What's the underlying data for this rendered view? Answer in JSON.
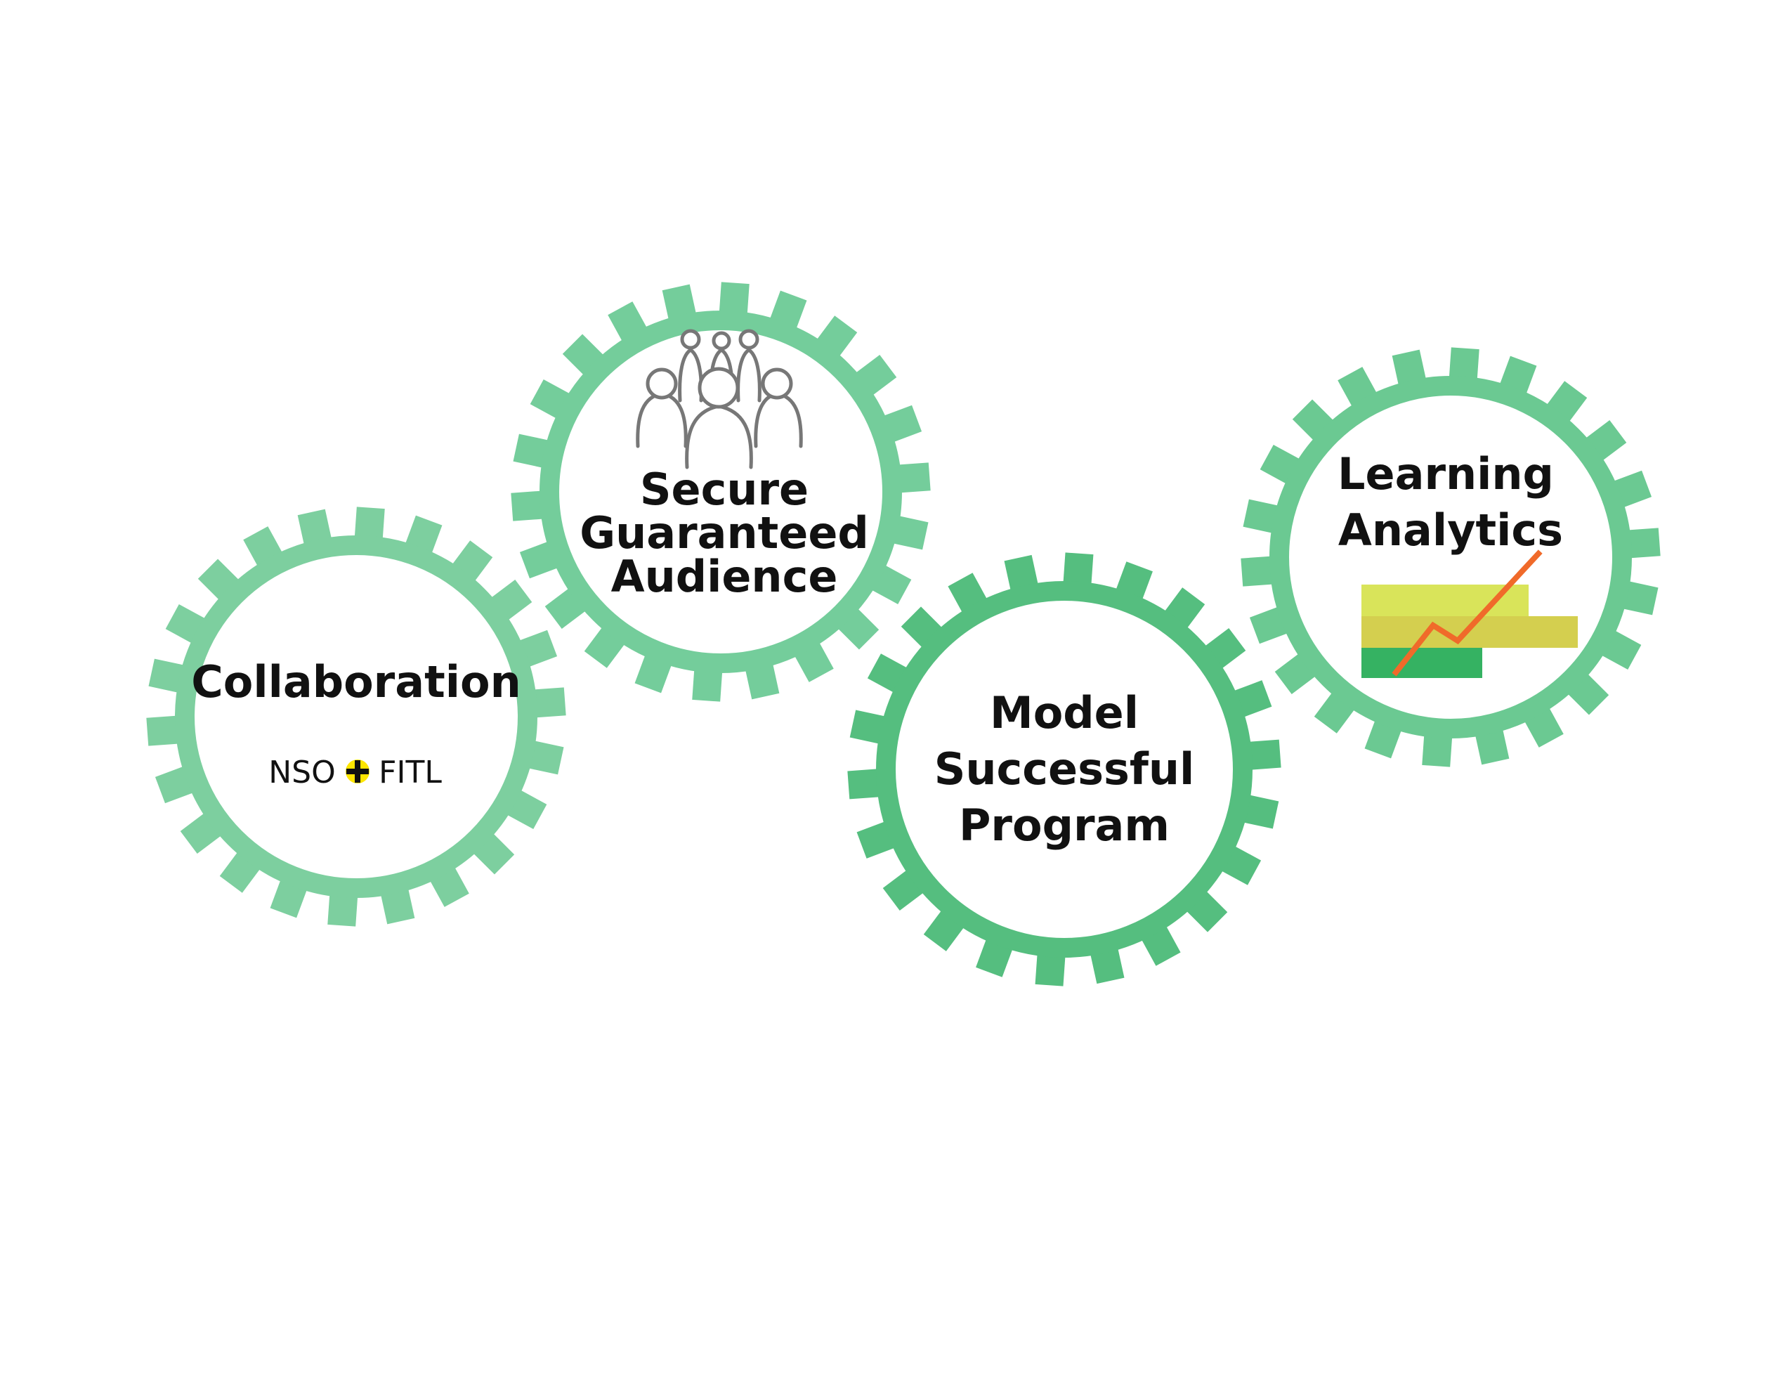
{
  "gears": [
    {
      "id": "collaboration",
      "title_lines": [
        "Collaboration"
      ],
      "subtitle": {
        "left": "NSO",
        "right": "FITL"
      },
      "color": "#7dcf9f"
    },
    {
      "id": "secure-audience",
      "title_lines": [
        "Secure",
        "Guaranteed",
        "Audience"
      ],
      "color": "#74cd9b",
      "icon": "people-group-icon"
    },
    {
      "id": "model-program",
      "title_lines": [
        "Model",
        "Successful",
        "Program"
      ],
      "color": "#55be7f"
    },
    {
      "id": "learning-analytics",
      "title_lines": [
        "Learning",
        "Analytics"
      ],
      "color": "#6bc992",
      "icon": "analytics-chart-icon"
    }
  ],
  "colors": {
    "text": "#111111",
    "plus_badge": "#ffe600",
    "chart_bar_top": "#d9e45a",
    "chart_bar_middle": "#d4cf4f",
    "chart_bar_bottom": "#35b262",
    "chart_line": "#f06a2a",
    "people_stroke": "#777777"
  }
}
